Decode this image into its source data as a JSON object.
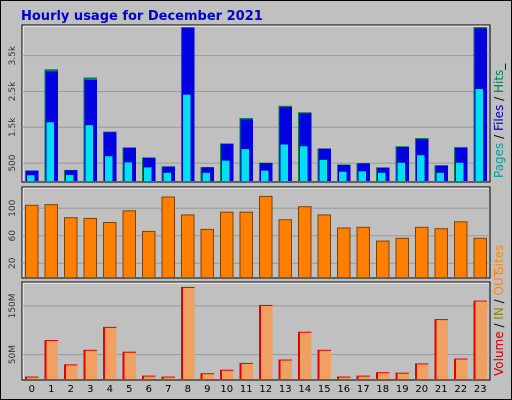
{
  "page": {
    "title": "Hourly usage for December 2021"
  },
  "colors": {
    "background": "#c0c0c0",
    "plot_background": "#c0c0c0",
    "pages": "#00a0a0",
    "files": "#0000c0",
    "hits": "#00805c",
    "hits_bar": "#00805c",
    "files_bar": "#0000e0",
    "pages_bar": "#00e0f0",
    "sites": "#ff8800",
    "sites_bar": "#ff8000",
    "volume": "#cc0000",
    "volume_in_bar": "#e00000",
    "volume_out_bar": "#f0a060",
    "in": "#888800",
    "out": "#ff8800",
    "title": "#0000cc"
  },
  "chart_data": [
    {
      "type": "bar",
      "panel": "top",
      "legend": {
        "position": "right-vertical",
        "parts": [
          {
            "text": "Pages",
            "color": "#00a0a0"
          },
          {
            "text": " / ",
            "color": "#000000"
          },
          {
            "text": "Files",
            "color": "#0000c0"
          },
          {
            "text": " / ",
            "color": "#000000"
          },
          {
            "text": "Hits",
            "color": "#00805c"
          },
          {
            "text": "_",
            "color": "#000000"
          }
        ]
      },
      "categories": [
        "0",
        "1",
        "2",
        "3",
        "4",
        "5",
        "6",
        "7",
        "8",
        "9",
        "10",
        "11",
        "12",
        "13",
        "14",
        "15",
        "16",
        "17",
        "18",
        "19",
        "20",
        "21",
        "22",
        "23"
      ],
      "ylim": [
        0,
        4300
      ],
      "yticks": [
        {
          "value": 500,
          "label": "500"
        },
        {
          "value": 1500,
          "label": "1.5k"
        },
        {
          "value": 2500,
          "label": "2.5k"
        },
        {
          "value": 3500,
          "label": "3.5k"
        }
      ],
      "series": [
        {
          "name": "Hits",
          "values": [
            290,
            3120,
            310,
            2890,
            1380,
            940,
            660,
            410,
            4300,
            390,
            1050,
            1760,
            510,
            2100,
            1920,
            910,
            460,
            500,
            380,
            970,
            1200,
            440,
            950,
            4300
          ]
        },
        {
          "name": "Files",
          "values": [
            290,
            3060,
            300,
            2820,
            1360,
            920,
            640,
            400,
            4270,
            380,
            1030,
            1720,
            500,
            2070,
            1890,
            900,
            450,
            490,
            370,
            950,
            1170,
            430,
            920,
            4260
          ]
        },
        {
          "name": "Pages",
          "values": [
            160,
            1640,
            170,
            1560,
            690,
            520,
            380,
            230,
            2410,
            230,
            570,
            890,
            290,
            1020,
            970,
            590,
            260,
            270,
            230,
            510,
            720,
            230,
            510,
            2570
          ]
        }
      ]
    },
    {
      "type": "bar",
      "panel": "middle",
      "legend": {
        "position": "right-vertical",
        "parts": [
          {
            "text": "Sites",
            "color": "#ff8800"
          }
        ]
      },
      "categories": [
        "0",
        "1",
        "2",
        "3",
        "4",
        "5",
        "6",
        "7",
        "8",
        "9",
        "10",
        "11",
        "12",
        "13",
        "14",
        "15",
        "16",
        "17",
        "18",
        "19",
        "20",
        "21",
        "22",
        "23"
      ],
      "ylim": [
        0,
        128
      ],
      "yticks": [
        {
          "value": 20,
          "label": "20"
        },
        {
          "value": 60,
          "label": "60"
        },
        {
          "value": 100,
          "label": "100"
        }
      ],
      "series": [
        {
          "name": "Sites",
          "values": [
            105,
            106,
            87,
            86,
            80,
            97,
            67,
            117,
            91,
            70,
            95,
            95,
            118,
            84,
            103,
            91,
            72,
            73,
            53,
            57,
            73,
            71,
            81,
            57
          ]
        }
      ]
    },
    {
      "type": "bar",
      "panel": "bottom",
      "legend": {
        "position": "right-vertical",
        "parts": [
          {
            "text": "Volume",
            "color": "#cc0000"
          },
          {
            "text": " / ",
            "color": "#000000"
          },
          {
            "text": "IN",
            "color": "#888800"
          },
          {
            "text": " / ",
            "color": "#000000"
          },
          {
            "text": "OUT",
            "color": "#ff8800"
          }
        ]
      },
      "categories": [
        "0",
        "1",
        "2",
        "3",
        "4",
        "5",
        "6",
        "7",
        "8",
        "9",
        "10",
        "11",
        "12",
        "13",
        "14",
        "15",
        "16",
        "17",
        "18",
        "19",
        "20",
        "21",
        "22",
        "23"
      ],
      "ylim": [
        0,
        195
      ],
      "yticks": [
        {
          "value": 50,
          "label": "50M"
        },
        {
          "value": 150,
          "label": "150M"
        }
      ],
      "series": [
        {
          "name": "Volume",
          "values": [
            5,
            80,
            30,
            60,
            107,
            56,
            7,
            5,
            189,
            12,
            19,
            33,
            152,
            40,
            97,
            60,
            5,
            7,
            14,
            13,
            32,
            123,
            42,
            161
          ]
        }
      ]
    }
  ]
}
